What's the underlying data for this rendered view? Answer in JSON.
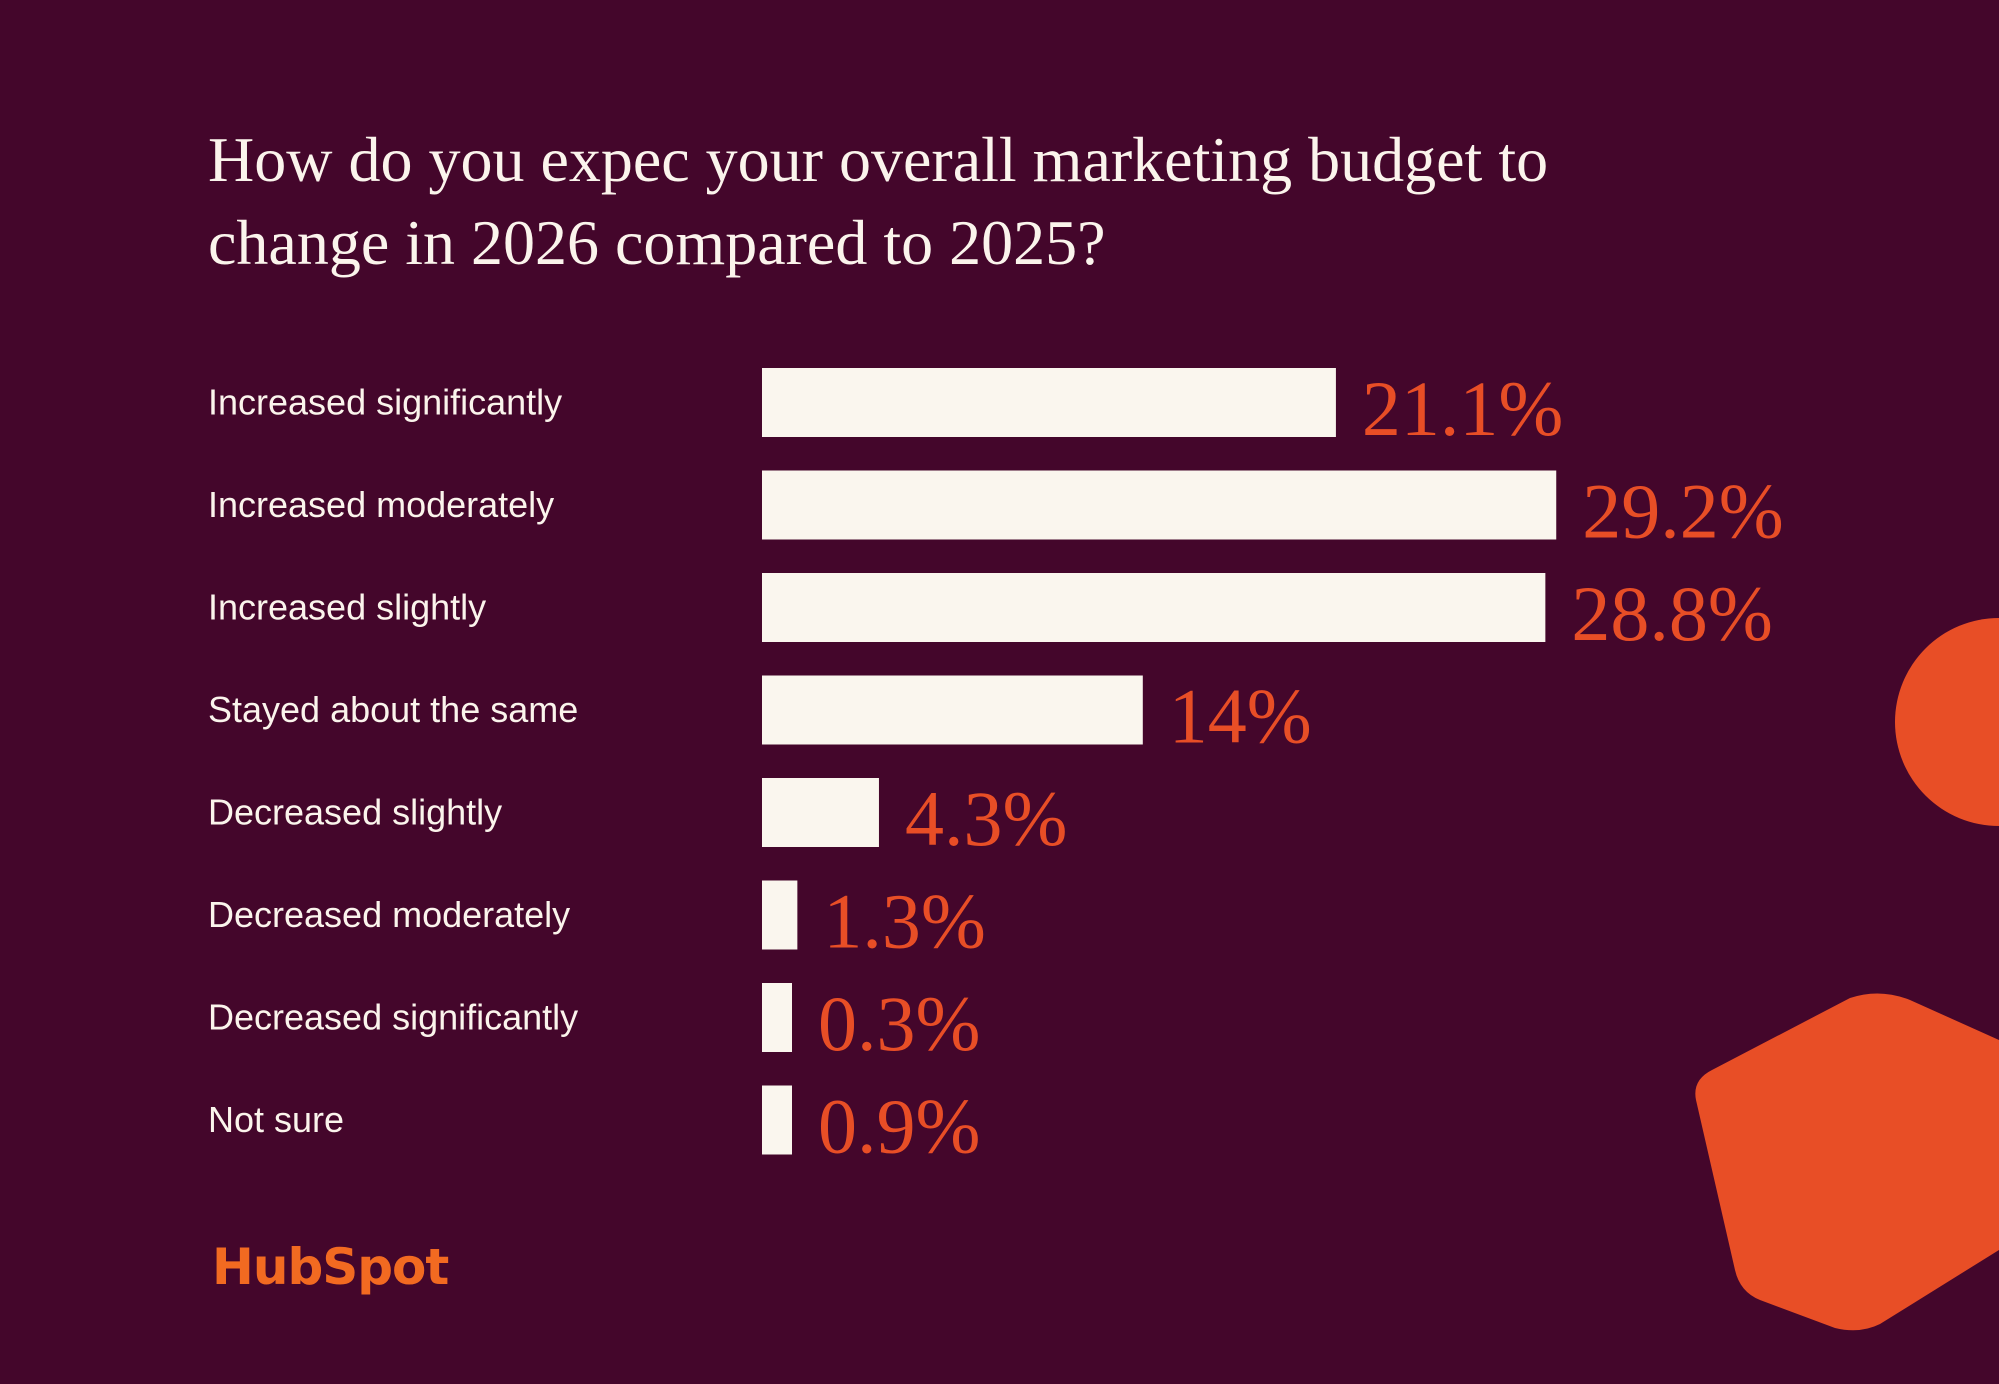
{
  "chart_data": {
    "type": "bar",
    "orientation": "horizontal",
    "title": "How do you expec your overall marketing budget to change in 2026 compared to 2025?",
    "categories": [
      "Increased significantly",
      "Increased moderately",
      "Increased slightly",
      "Stayed about the same",
      "Decreased slightly",
      "Decreased moderately",
      "Decreased significantly",
      "Not sure"
    ],
    "values": [
      21.1,
      29.2,
      28.8,
      14,
      4.3,
      1.3,
      0.3,
      0.9
    ],
    "data_labels": [
      "21.1%",
      "29.2%",
      "28.8%",
      "14%",
      "4.3%",
      "1.3%",
      "0.3%",
      "0.9%"
    ],
    "unit": "%",
    "xlabel": "",
    "ylabel": "",
    "grid": false,
    "legend": "none"
  },
  "brand": {
    "logo_text": "HubSpot"
  },
  "colors": {
    "background": "#44062B",
    "bar": "#FAF6EE",
    "accent": "#E84E26",
    "text": "#FBF4EC"
  }
}
